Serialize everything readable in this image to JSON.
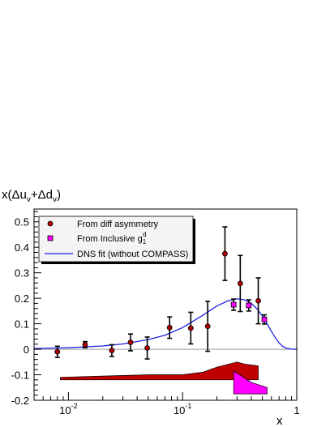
{
  "chart_data": {
    "type": "scatter",
    "ylabel": {
      "base": "x(Δu",
      "sub1": "v",
      "mid": "+Δd",
      "sub2": "v",
      "end": ")"
    },
    "xlabel": "x",
    "x_scale": "log",
    "xlim": [
      0.005,
      1
    ],
    "ylim": [
      -0.2,
      0.55
    ],
    "y_ticks": [
      -0.2,
      -0.1,
      0,
      0.1,
      0.2,
      0.3,
      0.4,
      0.5
    ],
    "x_ticks": [
      {
        "value": 0.01,
        "base": "10",
        "exp": "-2"
      },
      {
        "value": 0.1,
        "base": "10",
        "exp": "-1"
      },
      {
        "value": 1,
        "base": "1",
        "exp": ""
      }
    ],
    "legend": [
      {
        "marker": "circle",
        "text": "From diff asymmetry"
      },
      {
        "marker": "square",
        "text": "From Inclusive g",
        "sub": "1",
        "sup": "d"
      },
      {
        "marker": "line",
        "text": "DNS fit (without COMPASS)"
      }
    ],
    "series": [
      {
        "marker": "circle",
        "x": [
          0.008,
          0.014,
          0.024,
          0.035,
          0.049,
          0.077,
          0.118,
          0.166,
          0.235,
          0.32,
          0.46
        ],
        "y": [
          -0.01,
          0.018,
          -0.005,
          0.027,
          0.005,
          0.085,
          0.083,
          0.09,
          0.375,
          0.258,
          0.19
        ],
        "err": [
          0.022,
          0.012,
          0.023,
          0.033,
          0.043,
          0.042,
          0.062,
          0.098,
          0.105,
          0.11,
          0.09
        ]
      },
      {
        "marker": "square",
        "x": [
          0.28,
          0.38,
          0.52
        ],
        "y": [
          0.175,
          0.172,
          0.117
        ],
        "err": [
          0.022,
          0.022,
          0.018
        ]
      }
    ],
    "fit_curve": {
      "x": [
        0.005,
        0.01,
        0.02,
        0.03,
        0.05,
        0.07,
        0.1,
        0.15,
        0.2,
        0.25,
        0.3,
        0.35,
        0.4,
        0.45,
        0.5,
        0.55,
        0.6,
        0.65,
        0.7,
        0.75,
        0.8,
        0.9,
        1.0
      ],
      "y": [
        0.003,
        0.006,
        0.013,
        0.021,
        0.038,
        0.055,
        0.085,
        0.133,
        0.17,
        0.19,
        0.198,
        0.194,
        0.18,
        0.158,
        0.13,
        0.1,
        0.07,
        0.045,
        0.025,
        0.012,
        0.005,
        0.0005,
        0.0
      ]
    },
    "bands": [
      {
        "color": "#c00000",
        "upper": [
          [
            0.0085,
            -0.11
          ],
          [
            0.02,
            -0.105
          ],
          [
            0.05,
            -0.1
          ],
          [
            0.1,
            -0.1
          ],
          [
            0.15,
            -0.09
          ],
          [
            0.2,
            -0.07
          ],
          [
            0.3,
            -0.05
          ],
          [
            0.35,
            -0.058
          ],
          [
            0.46,
            -0.065
          ]
        ],
        "lower": [
          [
            0.0085,
            -0.12
          ],
          [
            0.05,
            -0.12
          ],
          [
            0.1,
            -0.12
          ],
          [
            0.2,
            -0.12
          ],
          [
            0.35,
            -0.12
          ],
          [
            0.46,
            -0.12
          ]
        ]
      },
      {
        "color": "#ff00ff",
        "upper": [
          [
            0.28,
            -0.085
          ],
          [
            0.4,
            -0.13
          ],
          [
            0.55,
            -0.15
          ]
        ],
        "lower": [
          [
            0.28,
            -0.175
          ],
          [
            0.55,
            -0.175
          ]
        ]
      }
    ],
    "colors": {
      "circle_fill": "#b00000",
      "square_fill": "#ff00ff",
      "fit_line": "#2020e0",
      "zero_line": "#999999"
    }
  }
}
